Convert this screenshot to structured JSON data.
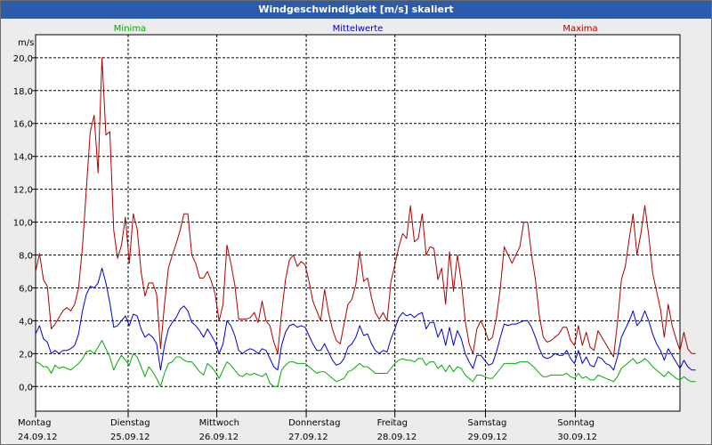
{
  "chart_data": {
    "type": "line",
    "title": "Windgeschwindigkeit [m/s] skaliert",
    "ylabel": "m/s",
    "xlabel": "",
    "ylim": [
      -1.5,
      21.4
    ],
    "xlim": [
      0,
      165
    ],
    "yticks": [
      "0,0",
      "2,0",
      "4,0",
      "6,0",
      "8,0",
      "10,0",
      "12,0",
      "14,0",
      "16,0",
      "18,0",
      "20,0"
    ],
    "ytick_values": [
      0,
      2,
      4,
      6,
      8,
      10,
      12,
      14,
      16,
      18,
      20
    ],
    "day_boundaries": [
      23.7,
      46.4,
      69.3,
      92.0,
      115.2,
      138.2
    ],
    "xticks": [
      {
        "day": "Montag",
        "date": "24.09.12"
      },
      {
        "day": "Dienstag",
        "date": "25.09.12"
      },
      {
        "day": "Mittwoch",
        "date": "26.09.12"
      },
      {
        "day": "Donnerstag",
        "date": "27.09.12"
      },
      {
        "day": "Freitag",
        "date": "28.09.12"
      },
      {
        "day": "Samstag",
        "date": "29.09.12"
      },
      {
        "day": "Sonntag",
        "date": "30.09.12"
      }
    ],
    "legend": [
      {
        "name": "Minima",
        "color": "#00aa00"
      },
      {
        "name": "Mittelwerte",
        "color": "#0000cc"
      },
      {
        "name": "Maxima",
        "color": "#aa0000"
      }
    ],
    "series": [
      {
        "name": "Maxima",
        "color": "#aa0000",
        "values": [
          7.0,
          8.1,
          6.5,
          6.1,
          3.5,
          3.8,
          4.2,
          4.6,
          4.8,
          4.6,
          5.0,
          6.0,
          8.5,
          12.0,
          15.5,
          16.5,
          13.0,
          20.0,
          15.3,
          15.5,
          9.5,
          7.8,
          8.6,
          10.3,
          7.5,
          10.5,
          9.6,
          7.0,
          5.5,
          6.3,
          6.3,
          5.6,
          2.3,
          5.0,
          7.2,
          8.0,
          8.7,
          9.5,
          10.5,
          10.5,
          8.0,
          7.5,
          6.6,
          6.6,
          7.0,
          6.4,
          5.6,
          4.0,
          5.0,
          8.6,
          7.5,
          6.2,
          4.1,
          4.1,
          4.1,
          4.2,
          4.5,
          3.9,
          5.2,
          4.0,
          3.7,
          2.7,
          2.0,
          4.5,
          6.5,
          7.7,
          8.0,
          7.3,
          7.6,
          7.4,
          6.4,
          5.2,
          4.6,
          4.0,
          5.9,
          4.5,
          3.5,
          2.8,
          2.6,
          3.8,
          5.0,
          5.3,
          6.2,
          8.2,
          6.4,
          6.6,
          5.4,
          4.5,
          4.1,
          4.5,
          4.0,
          6.4,
          7.4,
          8.5,
          9.3,
          9.0,
          11.0,
          8.8,
          9.0,
          10.5,
          8.0,
          8.5,
          8.4,
          6.5,
          7.2,
          5.0,
          8.2,
          5.8,
          8.0,
          6.4,
          4.0,
          2.6,
          2.0,
          3.5,
          4.0,
          3.5,
          2.8,
          3.0,
          4.2,
          6.0,
          8.5,
          8.0,
          7.5,
          8.0,
          8.5,
          10.0,
          10.0,
          8.0,
          6.5,
          4.3,
          3.0,
          2.7,
          2.8,
          3.0,
          3.2,
          3.6,
          3.6,
          2.8,
          2.5,
          3.7,
          2.5,
          3.3,
          2.4,
          2.2,
          3.4,
          3.0,
          2.6,
          2.2,
          1.8,
          3.9,
          6.5,
          7.3,
          9.0,
          10.5,
          8.0,
          9.3,
          11.0,
          9.2,
          6.9,
          5.8,
          4.7,
          3.0,
          5.0,
          3.7,
          2.9,
          2.2,
          3.3,
          2.3,
          2.0,
          2.0
        ]
      },
      {
        "name": "Mittelwerte",
        "color": "#0000cc",
        "values": [
          3.2,
          3.7,
          2.9,
          2.7,
          2.0,
          2.2,
          2.0,
          2.2,
          2.2,
          2.3,
          2.5,
          3.2,
          4.6,
          5.6,
          6.1,
          6.0,
          6.3,
          7.2,
          6.3,
          5.1,
          3.6,
          3.7,
          4.0,
          4.3,
          3.7,
          4.4,
          4.3,
          3.5,
          3.0,
          3.2,
          3.0,
          2.6,
          1.0,
          2.5,
          3.5,
          3.9,
          4.2,
          4.7,
          4.9,
          4.6,
          3.9,
          3.7,
          3.4,
          3.0,
          3.5,
          3.1,
          2.7,
          2.0,
          2.6,
          4.0,
          3.7,
          3.1,
          2.2,
          2.0,
          2.2,
          2.3,
          2.2,
          2.0,
          2.3,
          2.2,
          1.7,
          1.2,
          1.0,
          2.5,
          3.3,
          3.7,
          3.8,
          3.6,
          3.7,
          3.6,
          3.1,
          2.6,
          2.2,
          2.2,
          2.6,
          2.1,
          1.6,
          1.3,
          1.4,
          1.7,
          2.4,
          2.6,
          3.0,
          3.7,
          3.1,
          3.2,
          2.6,
          2.2,
          2.0,
          2.2,
          2.1,
          2.9,
          3.5,
          4.2,
          4.5,
          4.3,
          4.4,
          4.2,
          4.4,
          4.5,
          3.5,
          3.9,
          3.9,
          3.0,
          3.5,
          2.5,
          3.6,
          2.5,
          3.4,
          2.9,
          2.0,
          1.5,
          1.1,
          1.9,
          1.9,
          1.6,
          1.3,
          1.4,
          2.1,
          3.0,
          3.8,
          3.7,
          3.8,
          3.8,
          3.9,
          4.0,
          4.0,
          3.6,
          3.0,
          2.3,
          1.8,
          1.7,
          1.8,
          2.0,
          1.9,
          1.9,
          2.2,
          1.7,
          1.4,
          2.2,
          1.4,
          1.8,
          1.3,
          1.2,
          1.8,
          1.7,
          1.4,
          1.3,
          1.0,
          1.8,
          3.0,
          3.5,
          4.0,
          4.6,
          3.7,
          4.0,
          4.6,
          4.0,
          3.2,
          2.6,
          2.2,
          1.6,
          2.3,
          1.9,
          1.5,
          1.1,
          1.6,
          1.2,
          1.0,
          1.0
        ]
      },
      {
        "name": "Minima",
        "color": "#00aa00",
        "values": [
          1.5,
          1.4,
          1.2,
          1.2,
          0.8,
          1.3,
          1.1,
          1.2,
          1.1,
          1.0,
          1.2,
          1.4,
          1.7,
          2.1,
          2.2,
          2.0,
          2.4,
          2.8,
          2.3,
          1.8,
          1.0,
          1.5,
          1.9,
          1.6,
          1.3,
          2.0,
          1.8,
          1.2,
          0.6,
          1.2,
          0.9,
          0.5,
          0.0,
          0.8,
          1.4,
          1.5,
          1.8,
          1.8,
          1.6,
          1.5,
          1.5,
          1.2,
          0.9,
          0.7,
          1.4,
          1.2,
          0.9,
          0.5,
          1.0,
          1.5,
          1.3,
          1.0,
          0.7,
          0.6,
          0.8,
          0.7,
          0.8,
          0.7,
          0.6,
          0.8,
          0.2,
          0.0,
          0.0,
          1.0,
          1.3,
          1.5,
          1.5,
          1.4,
          1.4,
          1.4,
          1.2,
          1.0,
          0.8,
          0.9,
          0.9,
          0.7,
          0.5,
          0.3,
          0.4,
          0.5,
          0.9,
          1.0,
          1.2,
          1.4,
          1.2,
          1.2,
          1.0,
          0.8,
          0.8,
          0.8,
          0.8,
          1.1,
          1.4,
          1.6,
          1.7,
          1.6,
          1.6,
          1.5,
          1.7,
          1.7,
          1.3,
          1.5,
          1.5,
          1.1,
          1.3,
          0.9,
          1.3,
          0.9,
          1.2,
          1.1,
          0.7,
          0.5,
          0.3,
          0.7,
          0.7,
          0.6,
          0.5,
          0.5,
          0.8,
          1.1,
          1.4,
          1.4,
          1.4,
          1.4,
          1.5,
          1.5,
          1.5,
          1.3,
          1.1,
          0.8,
          0.6,
          0.6,
          0.7,
          0.7,
          0.7,
          0.7,
          0.8,
          0.6,
          0.5,
          0.8,
          0.5,
          0.6,
          0.4,
          0.4,
          0.7,
          0.6,
          0.5,
          0.4,
          0.3,
          0.6,
          1.1,
          1.3,
          1.5,
          1.7,
          1.4,
          1.5,
          1.7,
          1.5,
          1.2,
          1.0,
          0.8,
          0.6,
          0.9,
          0.7,
          0.5,
          0.4,
          0.6,
          0.4,
          0.3,
          0.3
        ]
      }
    ]
  }
}
